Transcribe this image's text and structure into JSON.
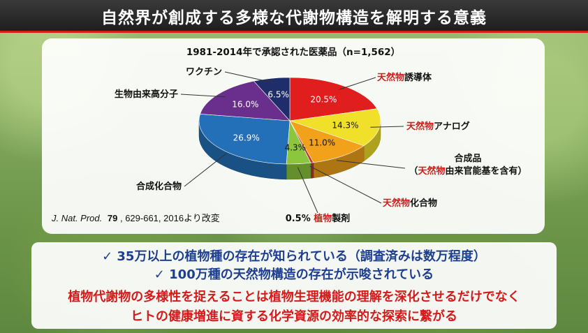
{
  "title": "自然界が創成する多様な代謝物構造を解明する意義",
  "chart_data": {
    "type": "pie",
    "title": "1981-2014年で承認された医薬品（n=1,562）",
    "unit": "%",
    "slices": [
      {
        "value": 20.5,
        "label": "20.5%",
        "color": "#e01e1e",
        "text_color": "#ffffff",
        "name_parts": [
          {
            "t": "天然物",
            "red": true
          },
          {
            "t": "誘導体",
            "red": false
          }
        ]
      },
      {
        "value": 14.3,
        "label": "14.3%",
        "color": "#f1e02a",
        "text_color": "#111111",
        "name_parts": [
          {
            "t": "天然物",
            "red": true
          },
          {
            "t": "アナログ",
            "red": false
          }
        ]
      },
      {
        "value": 11.0,
        "label": "11.0%",
        "color": "#f2a21a",
        "text_color": "#111111",
        "name_lines": [
          [
            {
              "t": "合成品",
              "red": false
            }
          ],
          [
            {
              "t": "（",
              "red": false
            },
            {
              "t": "天然物",
              "red": true
            },
            {
              "t": "由来官能基を含有）",
              "red": false
            }
          ]
        ]
      },
      {
        "value": 0.5,
        "label": "",
        "color": "#c0392b",
        "text_color": "#111111",
        "name_parts": [
          {
            "t": "天然物",
            "red": true
          },
          {
            "t": "化合物",
            "red": false
          }
        ]
      },
      {
        "value": 4.3,
        "label": "4.3%",
        "color": "#8cc63e",
        "text_color": "#111111",
        "name_parts": [
          {
            "t": "0.5% ",
            "red": false
          },
          {
            "t": "植物",
            "red": true
          },
          {
            "t": "製剤",
            "red": false
          }
        ]
      },
      {
        "value": 26.9,
        "label": "26.9%",
        "color": "#2470b8",
        "text_color": "#ffffff",
        "name_parts": [
          {
            "t": "合成化合物",
            "red": false
          }
        ]
      },
      {
        "value": 16.0,
        "label": "16.0%",
        "color": "#6a2f8c",
        "text_color": "#ffffff",
        "name_parts": [
          {
            "t": "生物由来高分子",
            "red": false
          }
        ]
      },
      {
        "value": 6.5,
        "label": "6.5%",
        "color": "#1f2e6b",
        "text_color": "#ffffff",
        "name_parts": [
          {
            "t": "ワクチン",
            "red": false
          }
        ]
      }
    ],
    "reference": {
      "journal": "J. Nat. Prod.",
      "volume": "79",
      "rest": ", 629-661, 2016より改変"
    }
  },
  "bullets": [
    "✓ 35万以上の植物種の存在が知られている（調査済みは数万程度）",
    "✓ 100万種の天然物構造の存在が示唆されている"
  ],
  "conclusion": [
    "植物代謝物の多様性を捉えることは植物生理機能の理解を深化させるだけでなく",
    "ヒトの健康増進に資する化学資源の効率的な探索に繋がる"
  ]
}
